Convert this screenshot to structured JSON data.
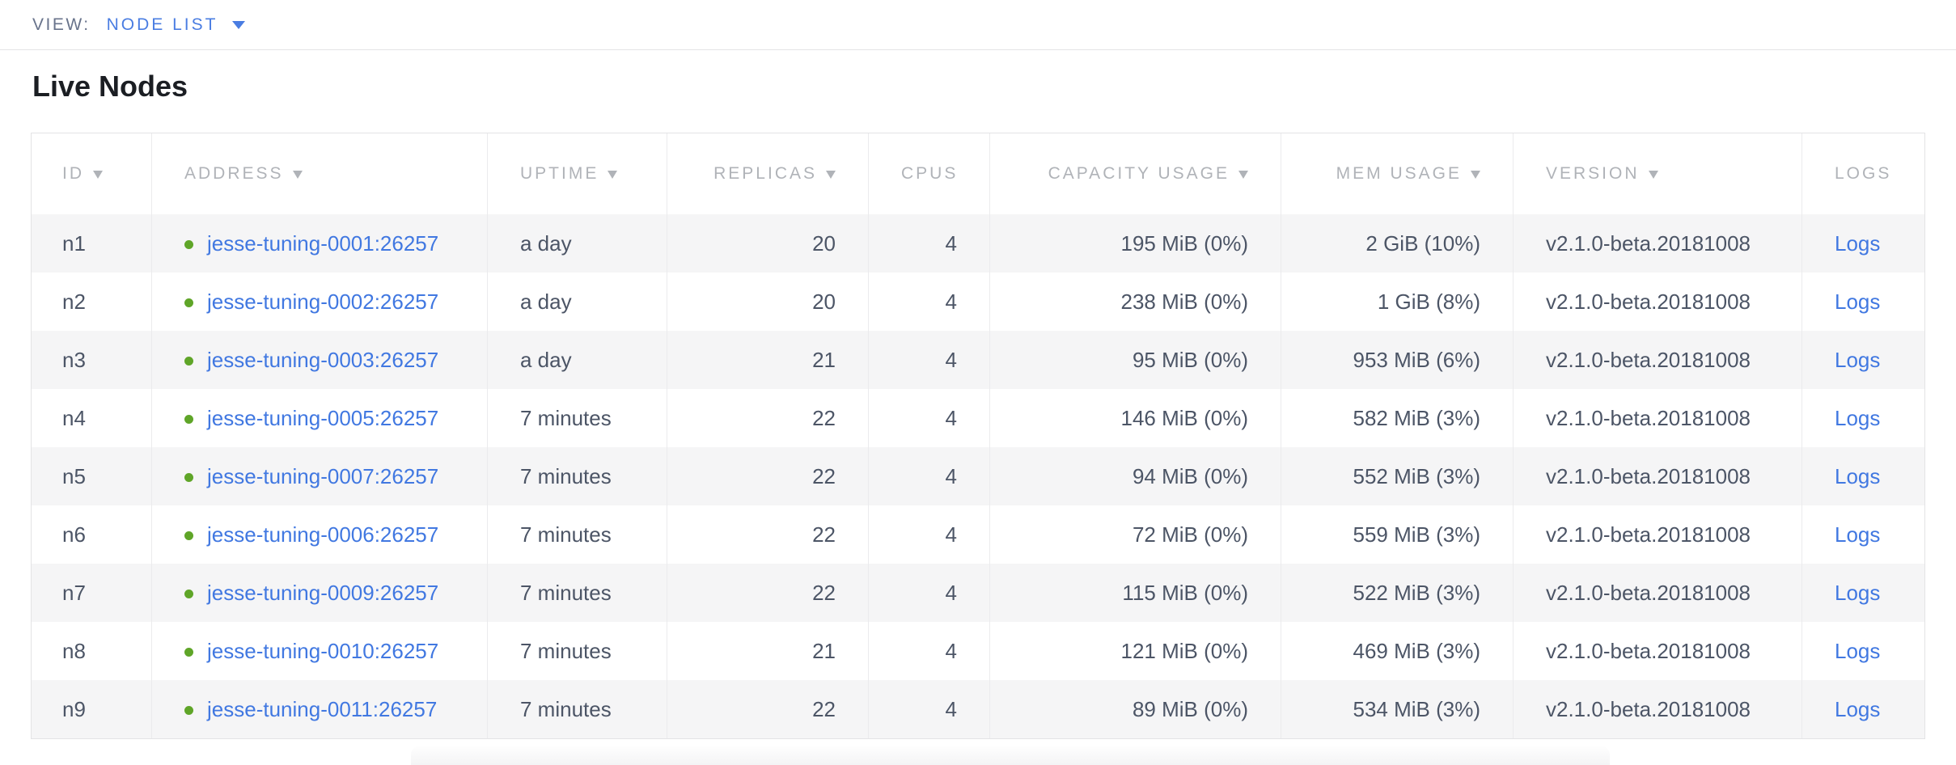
{
  "view_bar": {
    "label": "VIEW:",
    "selected_view": "NODE LIST",
    "dropdown_icon": "caret-down-icon"
  },
  "page": {
    "title": "Live Nodes"
  },
  "table": {
    "columns": [
      {
        "key": "id",
        "label": "ID",
        "sortable": true,
        "align": "left"
      },
      {
        "key": "address",
        "label": "ADDRESS",
        "sortable": true,
        "align": "left"
      },
      {
        "key": "uptime",
        "label": "UPTIME",
        "sortable": true,
        "align": "left"
      },
      {
        "key": "replicas",
        "label": "REPLICAS",
        "sortable": true,
        "align": "right"
      },
      {
        "key": "cpus",
        "label": "CPUS",
        "sortable": false,
        "align": "right"
      },
      {
        "key": "capacity",
        "label": "CAPACITY USAGE",
        "sortable": true,
        "align": "right"
      },
      {
        "key": "mem",
        "label": "MEM USAGE",
        "sortable": true,
        "align": "right"
      },
      {
        "key": "version",
        "label": "VERSION",
        "sortable": true,
        "align": "left"
      },
      {
        "key": "logs",
        "label": "LOGS",
        "sortable": false,
        "align": "left"
      }
    ],
    "rows": [
      {
        "id": "n1",
        "status": "live",
        "address": "jesse-tuning-0001:26257",
        "uptime": "a day",
        "replicas": "20",
        "cpus": "4",
        "capacity": "195 MiB (0%)",
        "mem": "2 GiB (10%)",
        "version": "v2.1.0-beta.20181008",
        "logs": "Logs"
      },
      {
        "id": "n2",
        "status": "live",
        "address": "jesse-tuning-0002:26257",
        "uptime": "a day",
        "replicas": "20",
        "cpus": "4",
        "capacity": "238 MiB (0%)",
        "mem": "1 GiB (8%)",
        "version": "v2.1.0-beta.20181008",
        "logs": "Logs"
      },
      {
        "id": "n3",
        "status": "live",
        "address": "jesse-tuning-0003:26257",
        "uptime": "a day",
        "replicas": "21",
        "cpus": "4",
        "capacity": "95 MiB (0%)",
        "mem": "953 MiB (6%)",
        "version": "v2.1.0-beta.20181008",
        "logs": "Logs"
      },
      {
        "id": "n4",
        "status": "live",
        "address": "jesse-tuning-0005:26257",
        "uptime": "7 minutes",
        "replicas": "22",
        "cpus": "4",
        "capacity": "146 MiB (0%)",
        "mem": "582 MiB (3%)",
        "version": "v2.1.0-beta.20181008",
        "logs": "Logs"
      },
      {
        "id": "n5",
        "status": "live",
        "address": "jesse-tuning-0007:26257",
        "uptime": "7 minutes",
        "replicas": "22",
        "cpus": "4",
        "capacity": "94 MiB (0%)",
        "mem": "552 MiB (3%)",
        "version": "v2.1.0-beta.20181008",
        "logs": "Logs"
      },
      {
        "id": "n6",
        "status": "live",
        "address": "jesse-tuning-0006:26257",
        "uptime": "7 minutes",
        "replicas": "22",
        "cpus": "4",
        "capacity": "72 MiB (0%)",
        "mem": "559 MiB (3%)",
        "version": "v2.1.0-beta.20181008",
        "logs": "Logs"
      },
      {
        "id": "n7",
        "status": "live",
        "address": "jesse-tuning-0009:26257",
        "uptime": "7 minutes",
        "replicas": "22",
        "cpus": "4",
        "capacity": "115 MiB (0%)",
        "mem": "522 MiB (3%)",
        "version": "v2.1.0-beta.20181008",
        "logs": "Logs"
      },
      {
        "id": "n8",
        "status": "live",
        "address": "jesse-tuning-0010:26257",
        "uptime": "7 minutes",
        "replicas": "21",
        "cpus": "4",
        "capacity": "121 MiB (0%)",
        "mem": "469 MiB (3%)",
        "version": "v2.1.0-beta.20181008",
        "logs": "Logs"
      },
      {
        "id": "n9",
        "status": "live",
        "address": "jesse-tuning-0011:26257",
        "uptime": "7 minutes",
        "replicas": "22",
        "cpus": "4",
        "capacity": "89 MiB (0%)",
        "mem": "534 MiB (3%)",
        "version": "v2.1.0-beta.20181008",
        "logs": "Logs"
      }
    ]
  },
  "colors": {
    "accent_blue": "#4a7de2",
    "link_blue": "#4178e1",
    "live_green": "#5fa528",
    "header_gray": "#b0b3b8",
    "cell_text": "#4c5566",
    "row_alt_bg": "#f5f5f6"
  }
}
